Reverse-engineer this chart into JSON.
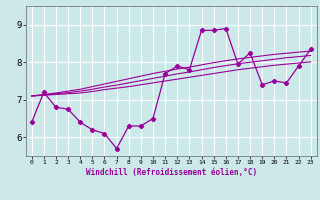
{
  "xlabel": "Windchill (Refroidissement éolien,°C)",
  "x": [
    0,
    1,
    2,
    3,
    4,
    5,
    6,
    7,
    8,
    9,
    10,
    11,
    12,
    13,
    14,
    15,
    16,
    17,
    18,
    19,
    20,
    21,
    22,
    23
  ],
  "y_main": [
    6.4,
    7.2,
    6.8,
    6.75,
    6.4,
    6.2,
    6.1,
    5.7,
    6.3,
    6.3,
    6.5,
    7.7,
    7.9,
    7.8,
    8.85,
    8.85,
    8.9,
    7.95,
    8.25,
    7.4,
    7.5,
    7.45,
    7.9,
    8.35
  ],
  "y_trend1": [
    7.1,
    7.12,
    7.14,
    7.16,
    7.18,
    7.22,
    7.27,
    7.31,
    7.35,
    7.4,
    7.45,
    7.5,
    7.55,
    7.6,
    7.65,
    7.7,
    7.75,
    7.8,
    7.84,
    7.88,
    7.92,
    7.95,
    7.98,
    8.01
  ],
  "y_trend2": [
    7.1,
    7.13,
    7.16,
    7.19,
    7.23,
    7.28,
    7.34,
    7.39,
    7.45,
    7.51,
    7.57,
    7.63,
    7.69,
    7.74,
    7.8,
    7.86,
    7.91,
    7.96,
    8.0,
    8.04,
    8.08,
    8.12,
    8.15,
    8.18
  ],
  "y_trend3": [
    7.1,
    7.14,
    7.18,
    7.23,
    7.28,
    7.35,
    7.42,
    7.49,
    7.56,
    7.63,
    7.7,
    7.76,
    7.82,
    7.87,
    7.93,
    7.99,
    8.04,
    8.09,
    8.13,
    8.17,
    8.21,
    8.24,
    8.27,
    8.3
  ],
  "line_color": "#990099",
  "bg_color": "#cce8e8",
  "grid_color": "#ffffff",
  "ylim": [
    5.5,
    9.5
  ],
  "yticks": [
    6,
    7,
    8,
    9
  ],
  "xlim": [
    -0.5,
    23.5
  ]
}
